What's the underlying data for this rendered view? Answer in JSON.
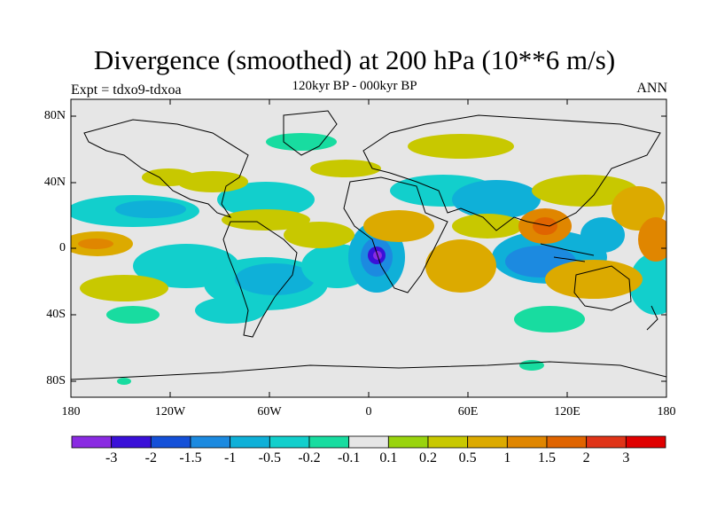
{
  "title": "Divergence (smoothed) at 200 hPa (10**6 m/s)",
  "subtitle": "120kyr BP - 000kyr BP",
  "left_label": "Expt = tdxo9-tdxoa",
  "right_label": "ANN",
  "lat_labels": [
    "80N",
    "40N",
    "0",
    "40S",
    "80S"
  ],
  "lon_labels": [
    "180",
    "120W",
    "60W",
    "0",
    "60E",
    "120E",
    "180"
  ],
  "colorbar": {
    "colors": [
      "#8a2be2",
      "#3a10d8",
      "#1450d8",
      "#1c8ae0",
      "#0fb0d8",
      "#12cfcc",
      "#18dca0",
      "#e6e6e6",
      "#99d40e",
      "#c8c800",
      "#dcaa00",
      "#e08600",
      "#e06400",
      "#e03418",
      "#e00000"
    ],
    "labels": [
      "-3",
      "-2",
      "-1.5",
      "-1",
      "-0.5",
      "-0.2",
      "-0.1",
      "0.1",
      "0.2",
      "0.5",
      "1",
      "1.5",
      "2",
      "3"
    ]
  },
  "colors": {
    "background": "#e6e6e6",
    "coast": "#000000"
  }
}
